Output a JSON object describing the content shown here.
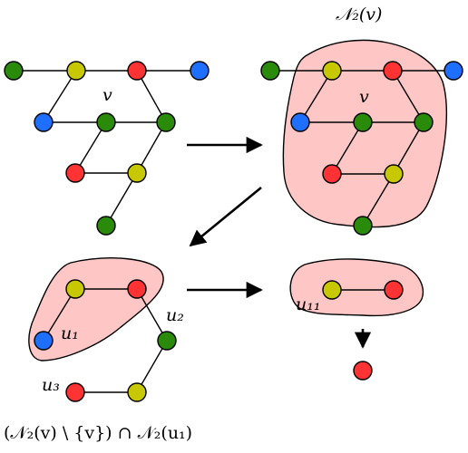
{
  "colors": {
    "green": "#2a8a0a",
    "yellow": "#c8c800",
    "red": "#ff3333",
    "blue": "#1f6fff",
    "region_fill": "#ffc6c6",
    "stroke": "#000000"
  },
  "labels": {
    "neighborhood_title": "𝒩₂(v)",
    "v_left": "v",
    "v_right": "v",
    "u1": "u₁",
    "u2": "u₂",
    "u3": "u₃",
    "u11": "u₁₁",
    "caption": "(𝒩₂(v) \\ {v}) ∩ 𝒩₂(u₁)"
  }
}
